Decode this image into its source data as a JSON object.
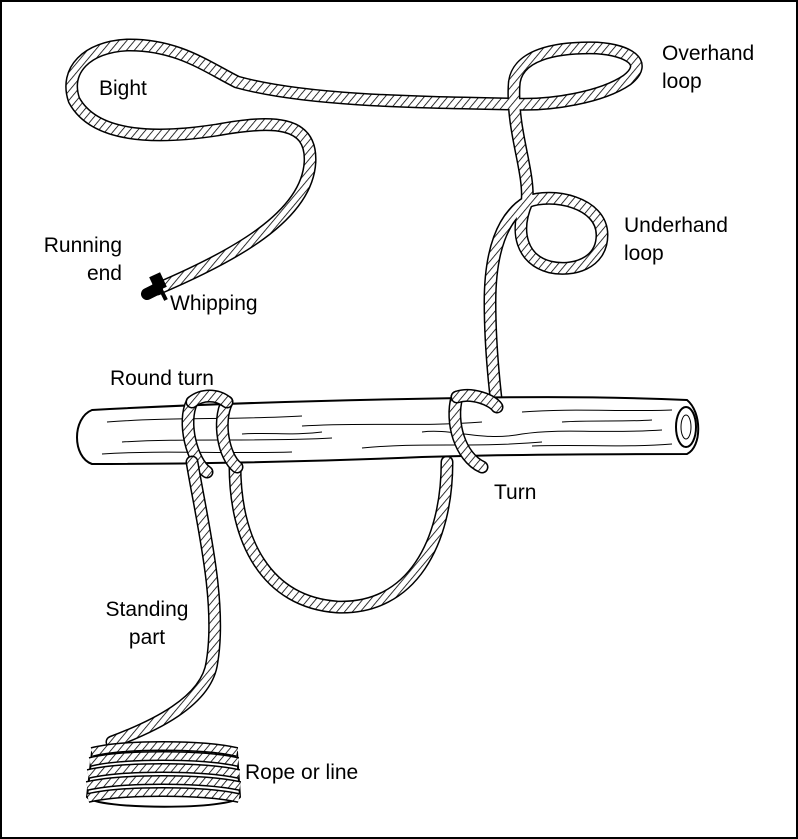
{
  "labels": {
    "bight": "Bight",
    "overhand_loop": [
      "Overhand",
      "loop"
    ],
    "underhand_loop": [
      "Underhand",
      "loop"
    ],
    "running_end": [
      "Running",
      "end"
    ],
    "whipping": "Whipping",
    "round_turn": "Round turn",
    "turn": "Turn",
    "standing_part": [
      "Standing",
      "part"
    ],
    "rope_or_line": "Rope or line"
  },
  "colors": {
    "line": "#000000",
    "rope_fill": "#ffffff",
    "log_fill": "#ffffff",
    "whipping": "#000000"
  }
}
